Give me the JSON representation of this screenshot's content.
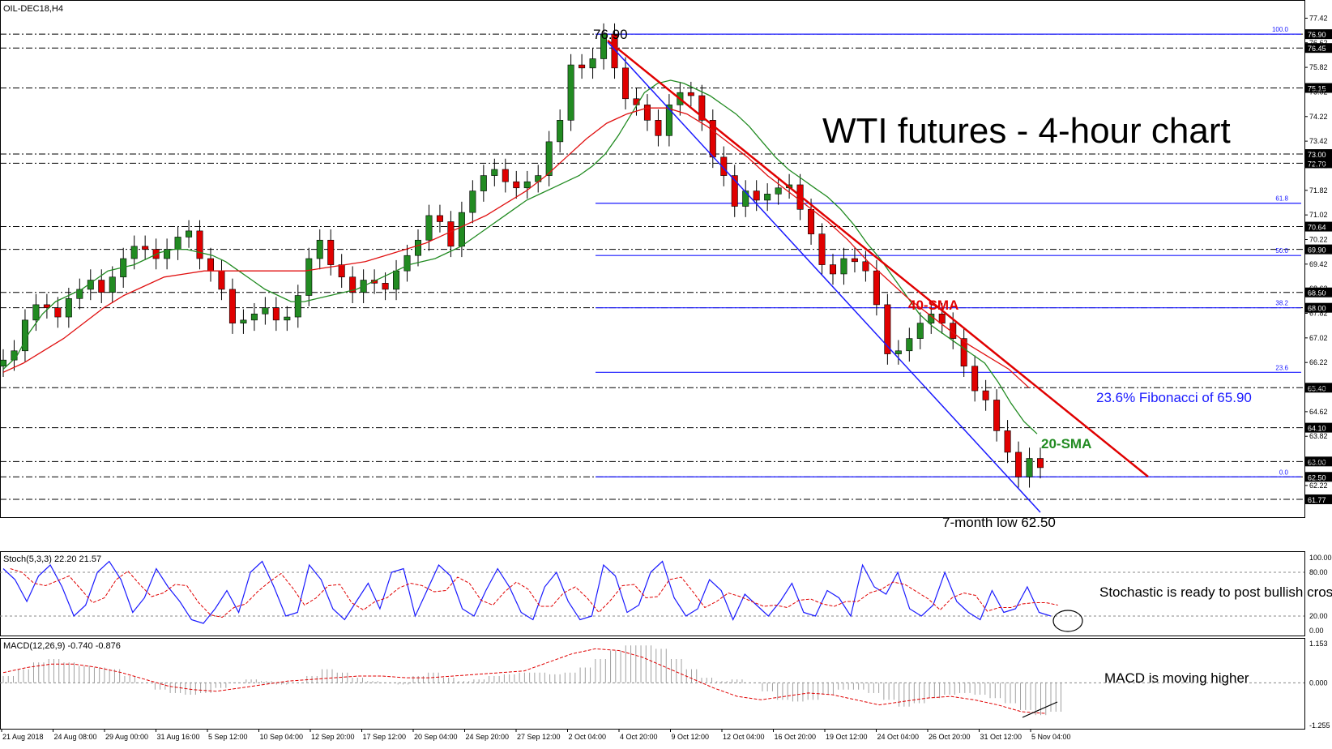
{
  "chart_data": {
    "type": "candlestick",
    "symbol_label": "OIL-DEC18,H4",
    "title": "WTI futures - 4-hour chart",
    "price_axis": {
      "ylim": [
        61.4,
        77.8
      ],
      "ticks": [
        "77.42",
        "76.62",
        "75.82",
        "75.02",
        "74.22",
        "73.42",
        "72.62",
        "71.82",
        "71.02",
        "70.22",
        "69.42",
        "68.62",
        "67.82",
        "67.02",
        "66.22",
        "65.42",
        "64.62",
        "63.82",
        "63.02",
        "62.22"
      ]
    },
    "time_axis": {
      "labels": [
        "21 Aug 2018",
        "24 Aug 08:00",
        "29 Aug 00:00",
        "31 Aug 16:00",
        "5 Sep 12:00",
        "10 Sep 04:00",
        "12 Sep 20:00",
        "17 Sep 12:00",
        "20 Sep 04:00",
        "24 Sep 20:00",
        "27 Sep 12:00",
        "2 Oct 04:00",
        "4 Oct 20:00",
        "9 Oct 12:00",
        "12 Oct 04:00",
        "16 Oct 20:00",
        "19 Oct 12:00",
        "24 Oct 04:00",
        "26 Oct 20:00",
        "31 Oct 12:00",
        "5 Nov 04:00"
      ]
    },
    "candles_note_series": "Approximate close path of OIL-DEC18 H4 candles (USD)",
    "close_path": [
      66.3,
      66.6,
      67.6,
      68.1,
      68.0,
      67.7,
      68.3,
      68.6,
      68.9,
      68.5,
      69.0,
      69.6,
      70.0,
      69.9,
      69.6,
      69.9,
      70.3,
      70.5,
      69.6,
      69.2,
      68.6,
      67.5,
      67.6,
      67.8,
      68.0,
      67.6,
      67.7,
      68.4,
      69.6,
      70.2,
      69.4,
      69.0,
      68.5,
      68.9,
      68.8,
      68.6,
      69.2,
      69.7,
      70.2,
      71.0,
      70.8,
      70.0,
      71.1,
      71.8,
      72.3,
      72.5,
      72.1,
      71.9,
      72.1,
      72.3,
      73.4,
      74.1,
      75.9,
      75.8,
      76.1,
      76.9,
      75.8,
      74.8,
      74.6,
      74.1,
      73.6,
      74.6,
      75.0,
      74.9,
      74.1,
      72.9,
      72.3,
      71.3,
      71.8,
      71.5,
      71.7,
      71.9,
      72.0,
      71.2,
      70.4,
      69.4,
      69.1,
      69.6,
      69.5,
      69.2,
      68.1,
      66.5,
      66.6,
      67.0,
      67.5,
      67.8,
      67.5,
      67.0,
      66.1,
      65.3,
      65.0,
      64.0,
      63.3,
      62.5,
      63.1,
      62.8
    ],
    "series": [
      {
        "name": "20-SMA",
        "color": "#228b22",
        "values": [
          66.0,
          66.4,
          67.2,
          67.8,
          68.2,
          68.4,
          68.6,
          68.9,
          69.2,
          69.3,
          69.4,
          69.6,
          69.8,
          69.9,
          69.9,
          69.8,
          69.7,
          69.5,
          69.2,
          68.9,
          68.6,
          68.4,
          68.2,
          68.2,
          68.3,
          68.4,
          68.5,
          68.6,
          68.8,
          69.0,
          69.2,
          69.4,
          69.5,
          69.6,
          69.8,
          70.0,
          70.3,
          70.6,
          70.9,
          71.2,
          71.5,
          71.7,
          71.9,
          72.1,
          72.3,
          72.6,
          73.0,
          73.6,
          74.3,
          75.0,
          75.3,
          75.4,
          75.3,
          75.1,
          74.9,
          74.6,
          74.3,
          73.9,
          73.4,
          72.9,
          72.5,
          72.2,
          71.9,
          71.6,
          71.2,
          70.7,
          70.1,
          69.6,
          69.0,
          68.4,
          67.8,
          67.4,
          67.1,
          66.8,
          66.5,
          66.2,
          65.6,
          64.9,
          64.3,
          63.9
        ]
      },
      {
        "name": "40-SMA",
        "color": "#e01010",
        "values": [
          65.9,
          66.2,
          66.6,
          67.0,
          67.5,
          68.0,
          68.4,
          68.7,
          69.0,
          69.1,
          69.2,
          69.2,
          69.2,
          69.2,
          69.2,
          69.2,
          69.3,
          69.4,
          69.5,
          69.7,
          69.9,
          70.1,
          70.4,
          70.7,
          71.0,
          71.4,
          71.8,
          72.3,
          72.9,
          73.5,
          74.0,
          74.3,
          74.5,
          74.5,
          74.3,
          73.9,
          73.4,
          72.9,
          72.3,
          71.8,
          71.3,
          70.8,
          70.2,
          69.5,
          68.9,
          68.3,
          67.8,
          67.3,
          66.8,
          66.4,
          66.0,
          65.4
        ]
      }
    ],
    "horizontal_levels": [
      "76.90",
      "76.45",
      "75.15",
      "73.00",
      "72.70",
      "70.64",
      "69.90",
      "68.50",
      "68.00",
      "65.40",
      "64.10",
      "63.00",
      "62.50",
      "61.77"
    ],
    "fibonacci": {
      "levels": [
        {
          "label": "100.0",
          "price": 76.9
        },
        {
          "label": "61.8",
          "price": 71.4
        },
        {
          "label": "50.0",
          "price": 69.7
        },
        {
          "label": "38.2",
          "price": 68.0
        },
        {
          "label": "23.6",
          "price": 65.9
        },
        {
          "label": "0.0",
          "price": 62.5
        }
      ]
    },
    "annotations": {
      "high": "76.90",
      "low": "7-month low 62.50",
      "fib_note": "23.6% Fibonacci of 65.90",
      "sma40": "40-SMA",
      "sma20": "20-SMA"
    },
    "stochastic": {
      "label": "Stoch(5,3,3) 22.20 21.57",
      "ticks": [
        "100.00",
        "80.00",
        "20.00",
        "0.00"
      ],
      "levels": [
        80,
        20
      ],
      "k_values": [
        85,
        70,
        40,
        75,
        90,
        60,
        20,
        35,
        80,
        95,
        70,
        25,
        45,
        85,
        60,
        40,
        15,
        10,
        30,
        55,
        25,
        80,
        95,
        60,
        20,
        25,
        90,
        70,
        30,
        15,
        40,
        65,
        30,
        80,
        85,
        20,
        55,
        90,
        75,
        30,
        20,
        55,
        85,
        60,
        25,
        15,
        60,
        80,
        40,
        15,
        20,
        90,
        75,
        25,
        35,
        80,
        95,
        45,
        20,
        30,
        70,
        55,
        15,
        50,
        35,
        20,
        40,
        65,
        25,
        20,
        55,
        45,
        20,
        90,
        60,
        50,
        80,
        30,
        20,
        35,
        80,
        40,
        25,
        15,
        55,
        25,
        30,
        60,
        25,
        20
      ],
      "note": "Stochastic is ready to post bullish cross"
    },
    "macd": {
      "label": "MACD(12,26,9) -0.740 -0.876",
      "ticks": [
        "1.153",
        "0.000",
        "-1.255"
      ],
      "hist": [
        0.2,
        0.4,
        0.6,
        0.7,
        0.6,
        0.5,
        0.45,
        0.4,
        0.2,
        0.0,
        -0.2,
        -0.3,
        -0.35,
        -0.3,
        -0.15,
        0.0,
        0.1,
        0.05,
        -0.05,
        0.0,
        0.2,
        0.4,
        0.3,
        0.15,
        0.05,
        0.0,
        -0.05,
        0.2,
        0.3,
        0.15,
        0.05,
        0.1,
        0.2,
        0.25,
        0.3,
        0.3,
        0.25,
        0.3,
        0.45,
        0.7,
        0.95,
        1.1,
        1.1,
        1.0,
        0.7,
        0.4,
        0.15,
        0.05,
        0.1,
        0.0,
        -0.25,
        -0.5,
        -0.55,
        -0.5,
        -0.35,
        -0.2,
        -0.2,
        -0.3,
        -0.5,
        -0.7,
        -0.6,
        -0.45,
        -0.35,
        -0.3,
        -0.35,
        -0.45,
        -0.6,
        -0.8,
        -0.95,
        -0.85
      ],
      "signal": [
        0.3,
        0.45,
        0.55,
        0.55,
        0.45,
        0.3,
        0.1,
        -0.1,
        -0.2,
        -0.25,
        -0.15,
        -0.05,
        0.05,
        0.1,
        0.15,
        0.2,
        0.2,
        0.15,
        0.15,
        0.2,
        0.25,
        0.3,
        0.35,
        0.6,
        0.85,
        1.0,
        0.95,
        0.75,
        0.45,
        0.15,
        -0.15,
        -0.4,
        -0.5,
        -0.4,
        -0.3,
        -0.35,
        -0.5,
        -0.65,
        -0.55,
        -0.45,
        -0.4,
        -0.5,
        -0.65,
        -0.85,
        -0.9
      ],
      "note": "MACD is moving higher"
    }
  }
}
